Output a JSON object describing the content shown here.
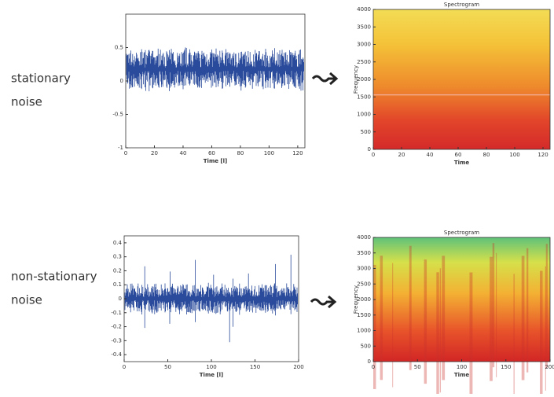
{
  "rows": [
    {
      "label_lines": [
        "stationary",
        "noise"
      ],
      "waveform": {
        "xlabel": "Time [l]",
        "xlim": [
          0,
          125
        ],
        "ylim": [
          -1,
          1
        ],
        "xticks": [
          0,
          20,
          40,
          60,
          80,
          100,
          120
        ],
        "yticks": [
          0.5,
          0,
          -0.5,
          -1
        ]
      },
      "spectrogram": {
        "title": "Spectrogram",
        "xlabel": "Time",
        "ylabel": "Frequency",
        "xlim": [
          0,
          125
        ],
        "ylim": [
          0,
          4000
        ],
        "xticks": [
          0,
          20,
          40,
          60,
          80,
          100,
          120
        ],
        "yticks": [
          0,
          500,
          1000,
          1500,
          2000,
          2500,
          3000,
          3500,
          4000
        ]
      }
    },
    {
      "label_lines": [
        "non-stationary",
        "noise"
      ],
      "waveform": {
        "xlabel": "Time [l]",
        "xlim": [
          0,
          200
        ],
        "ylim": [
          -0.45,
          0.45
        ],
        "xticks": [
          0,
          50,
          100,
          150,
          200
        ],
        "yticks": [
          0.4,
          0.3,
          0.2,
          0.1,
          0,
          -0.1,
          -0.2,
          -0.3,
          -0.4
        ]
      },
      "spectrogram": {
        "title": "Spectrogram",
        "xlabel": "Time",
        "ylabel": "Frequency",
        "xlim": [
          0,
          200
        ],
        "ylim": [
          0,
          4000
        ],
        "xticks": [
          0,
          50,
          100,
          150,
          200
        ],
        "yticks": [
          0,
          500,
          1000,
          1500,
          2000,
          2500,
          3000,
          3500,
          4000
        ]
      }
    }
  ]
}
